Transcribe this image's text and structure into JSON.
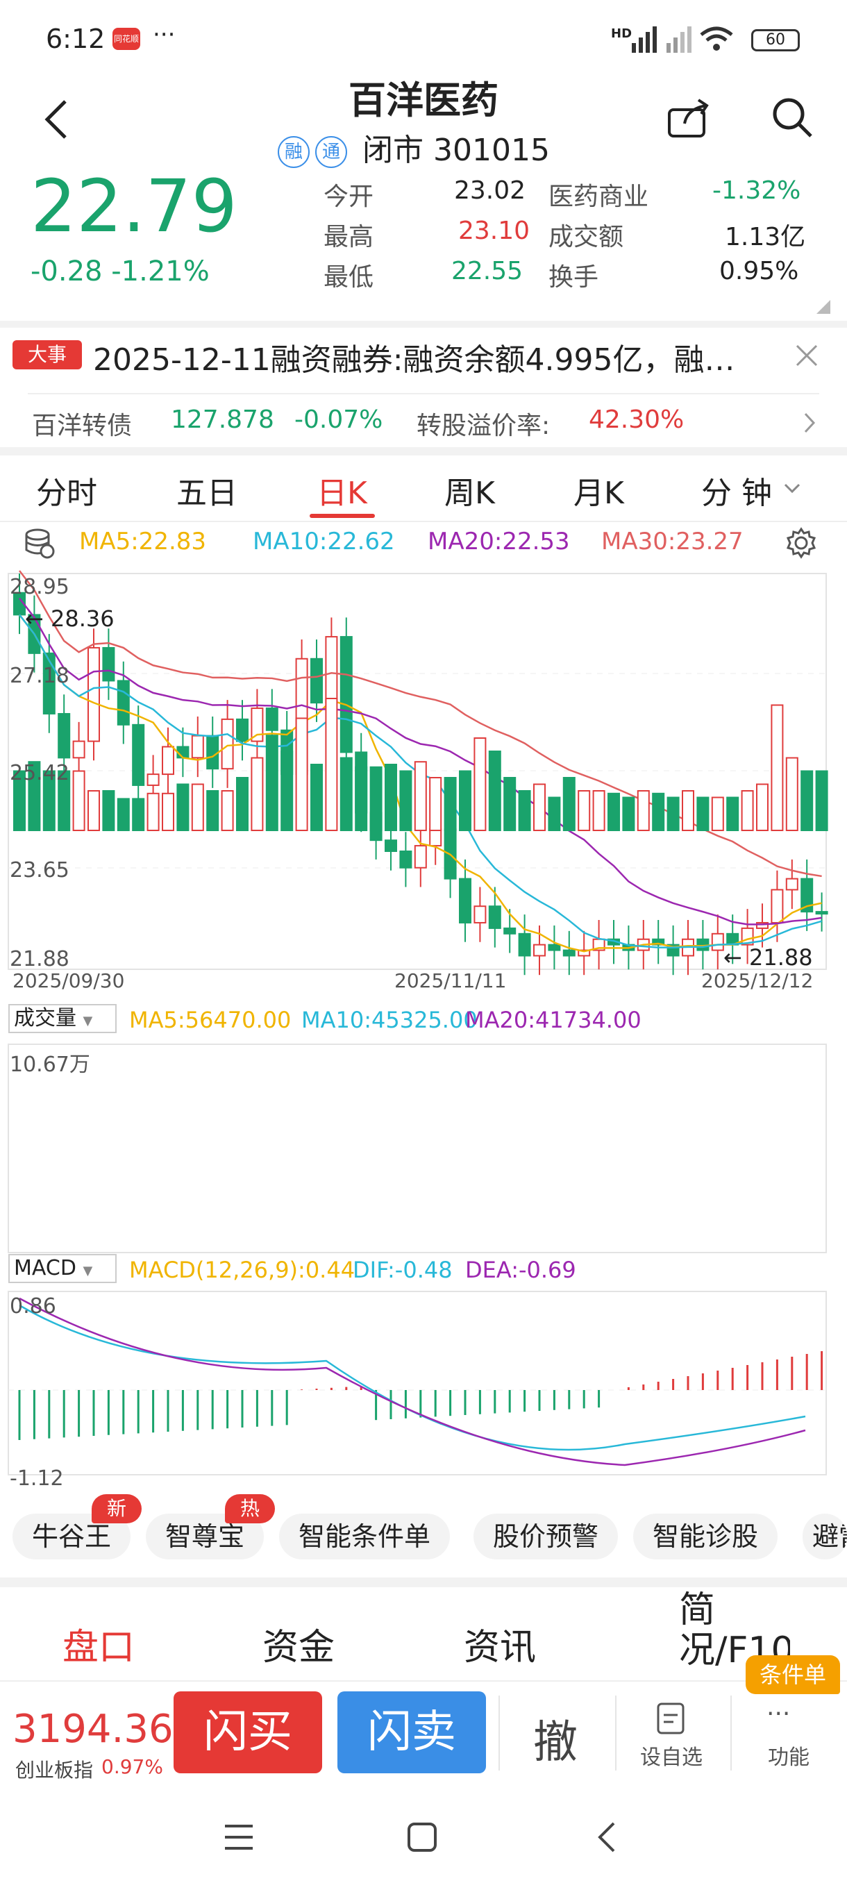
{
  "status": {
    "time": "6:12",
    "app_icon": "同花顺",
    "dots": "···",
    "battery": "60",
    "hd": "HD"
  },
  "header": {
    "title": "百洋医药",
    "tag1": "融",
    "tag2": "通",
    "state": "闭市",
    "code": "301015"
  },
  "quote": {
    "price": "22.79",
    "change": "-0.28",
    "change_pct": "-1.21%",
    "open_label": "今开",
    "open": "23.02",
    "high_label": "最高",
    "high": "23.10",
    "low_label": "最低",
    "low": "22.55",
    "sector_label": "医药商业",
    "sector_pct": "-1.32%",
    "amount_label": "成交额",
    "amount": "1.13亿",
    "turnover_label": "换手",
    "turnover": "0.95%"
  },
  "notice": {
    "tag": "大事",
    "text": "2025-12-11融资融券:融资余额4.995亿，融…"
  },
  "bond": {
    "name": "百洋转债",
    "price": "127.878",
    "pct": "-0.07%",
    "premium_label": "转股溢价率:",
    "premium": "42.30%"
  },
  "tabs": [
    "分时",
    "五日",
    "日K",
    "周K",
    "月K",
    "分 钟"
  ],
  "ma": {
    "ma5": "MA5:22.83",
    "ma10": "MA10:22.62",
    "ma20": "MA20:22.53",
    "ma30": "MA30:23.27"
  },
  "kline": {
    "y_labels": [
      "28.95",
      "27.18",
      "25.42",
      "23.65",
      "21.88"
    ],
    "dates": [
      "2025/09/30",
      "2025/11/11",
      "2025/12/12"
    ],
    "max_mark": "28.36",
    "min_mark": "21.88"
  },
  "volume": {
    "selector": "成交量",
    "ma5": "MA5:56470.00",
    "ma10": "MA10:45325.00",
    "ma20": "MA20:41734.00",
    "max_label": "10.67万"
  },
  "macd": {
    "selector": "MACD",
    "params": "MACD(12,26,9):0.44",
    "dif": "DIF:-0.48",
    "dea": "DEA:-0.69",
    "top": "0.86",
    "bottom": "-1.12"
  },
  "chips": [
    {
      "label": "牛谷王",
      "badge": "新"
    },
    {
      "label": "智尊宝",
      "badge": "热"
    },
    {
      "label": "智能条件单"
    },
    {
      "label": "股价预警"
    },
    {
      "label": "智能诊股"
    },
    {
      "label": "避雷"
    }
  ],
  "bottom_tabs": [
    "盘口",
    "资金",
    "资讯",
    "简况/F10"
  ],
  "bottom": {
    "index_value": "3194.36",
    "index_name": "创业板指",
    "index_pct": "0.97%",
    "buy": "闪买",
    "sell": "闪卖",
    "cancel": "撤",
    "watch": "设自选",
    "more": "功能",
    "cond": "条件单"
  },
  "colors": {
    "up": "#e03c3c",
    "down": "#1aa36c",
    "ma5": "#f0b400",
    "ma10": "#28b8d8",
    "ma20": "#9c27b0",
    "ma30": "#e06060"
  }
}
